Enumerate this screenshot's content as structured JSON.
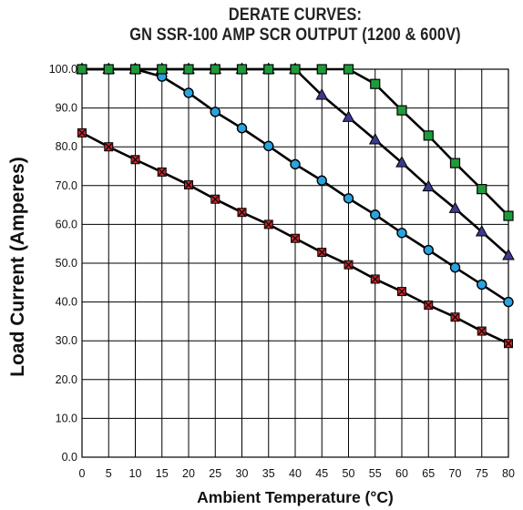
{
  "chart_data": {
    "type": "line",
    "title": "DERATE CURVES:",
    "subtitle": "GN SSR-100 AMP SCR OUTPUT (1200 & 600V)",
    "xlabel": "Ambient Temperature (°C)",
    "ylabel": "Load Current (Amperes)",
    "xlim": [
      0,
      80
    ],
    "ylim": [
      0,
      100
    ],
    "x_ticks": [
      0,
      5,
      10,
      15,
      20,
      25,
      30,
      35,
      40,
      45,
      50,
      55,
      60,
      65,
      70,
      75,
      80
    ],
    "y_ticks": [
      "0.0",
      "10.0",
      "20.0",
      "30.0",
      "40.0",
      "50.0",
      "60.0",
      "70.0",
      "80.0",
      "90.0",
      "100.0"
    ],
    "grid": true,
    "legend": "none",
    "series": [
      {
        "marker": "square",
        "color": "#1f9a3a",
        "x": [
          0,
          5,
          10,
          15,
          20,
          25,
          30,
          35,
          40,
          45,
          50,
          55,
          60,
          65,
          70,
          75,
          80
        ],
        "values": [
          100,
          100,
          100,
          100,
          100,
          100,
          100,
          100,
          100,
          100,
          100,
          96.2,
          89.4,
          82.9,
          75.8,
          69.1,
          62.2
        ]
      },
      {
        "marker": "triangle",
        "color": "#3d3a8c",
        "x": [
          0,
          5,
          10,
          15,
          20,
          25,
          30,
          35,
          40,
          45,
          50,
          55,
          60,
          65,
          70,
          75,
          80
        ],
        "values": [
          100,
          100,
          100,
          100,
          100,
          100,
          100,
          100,
          100,
          93.3,
          87.6,
          81.8,
          75.9,
          69.7,
          64.1,
          58.1,
          52
        ]
      },
      {
        "marker": "circle",
        "color": "#2aa3e0",
        "x": [
          0,
          5,
          10,
          15,
          20,
          25,
          30,
          35,
          40,
          45,
          50,
          55,
          60,
          65,
          70,
          75,
          80
        ],
        "values": [
          100,
          100,
          100,
          98.1,
          93.9,
          89,
          84.8,
          80.2,
          75.5,
          71.3,
          66.7,
          62.5,
          57.8,
          53.4,
          48.9,
          44.5,
          40
        ]
      },
      {
        "marker": "x-square",
        "color": "#c0282c",
        "x": [
          0,
          5,
          10,
          15,
          20,
          25,
          30,
          35,
          40,
          45,
          50,
          55,
          60,
          65,
          70,
          75,
          80
        ],
        "values": [
          83.6,
          80,
          76.7,
          73.5,
          70.2,
          66.5,
          63.1,
          60,
          56.4,
          52.8,
          49.6,
          45.9,
          42.7,
          39.2,
          36.1,
          32.5,
          29.3
        ]
      }
    ]
  }
}
